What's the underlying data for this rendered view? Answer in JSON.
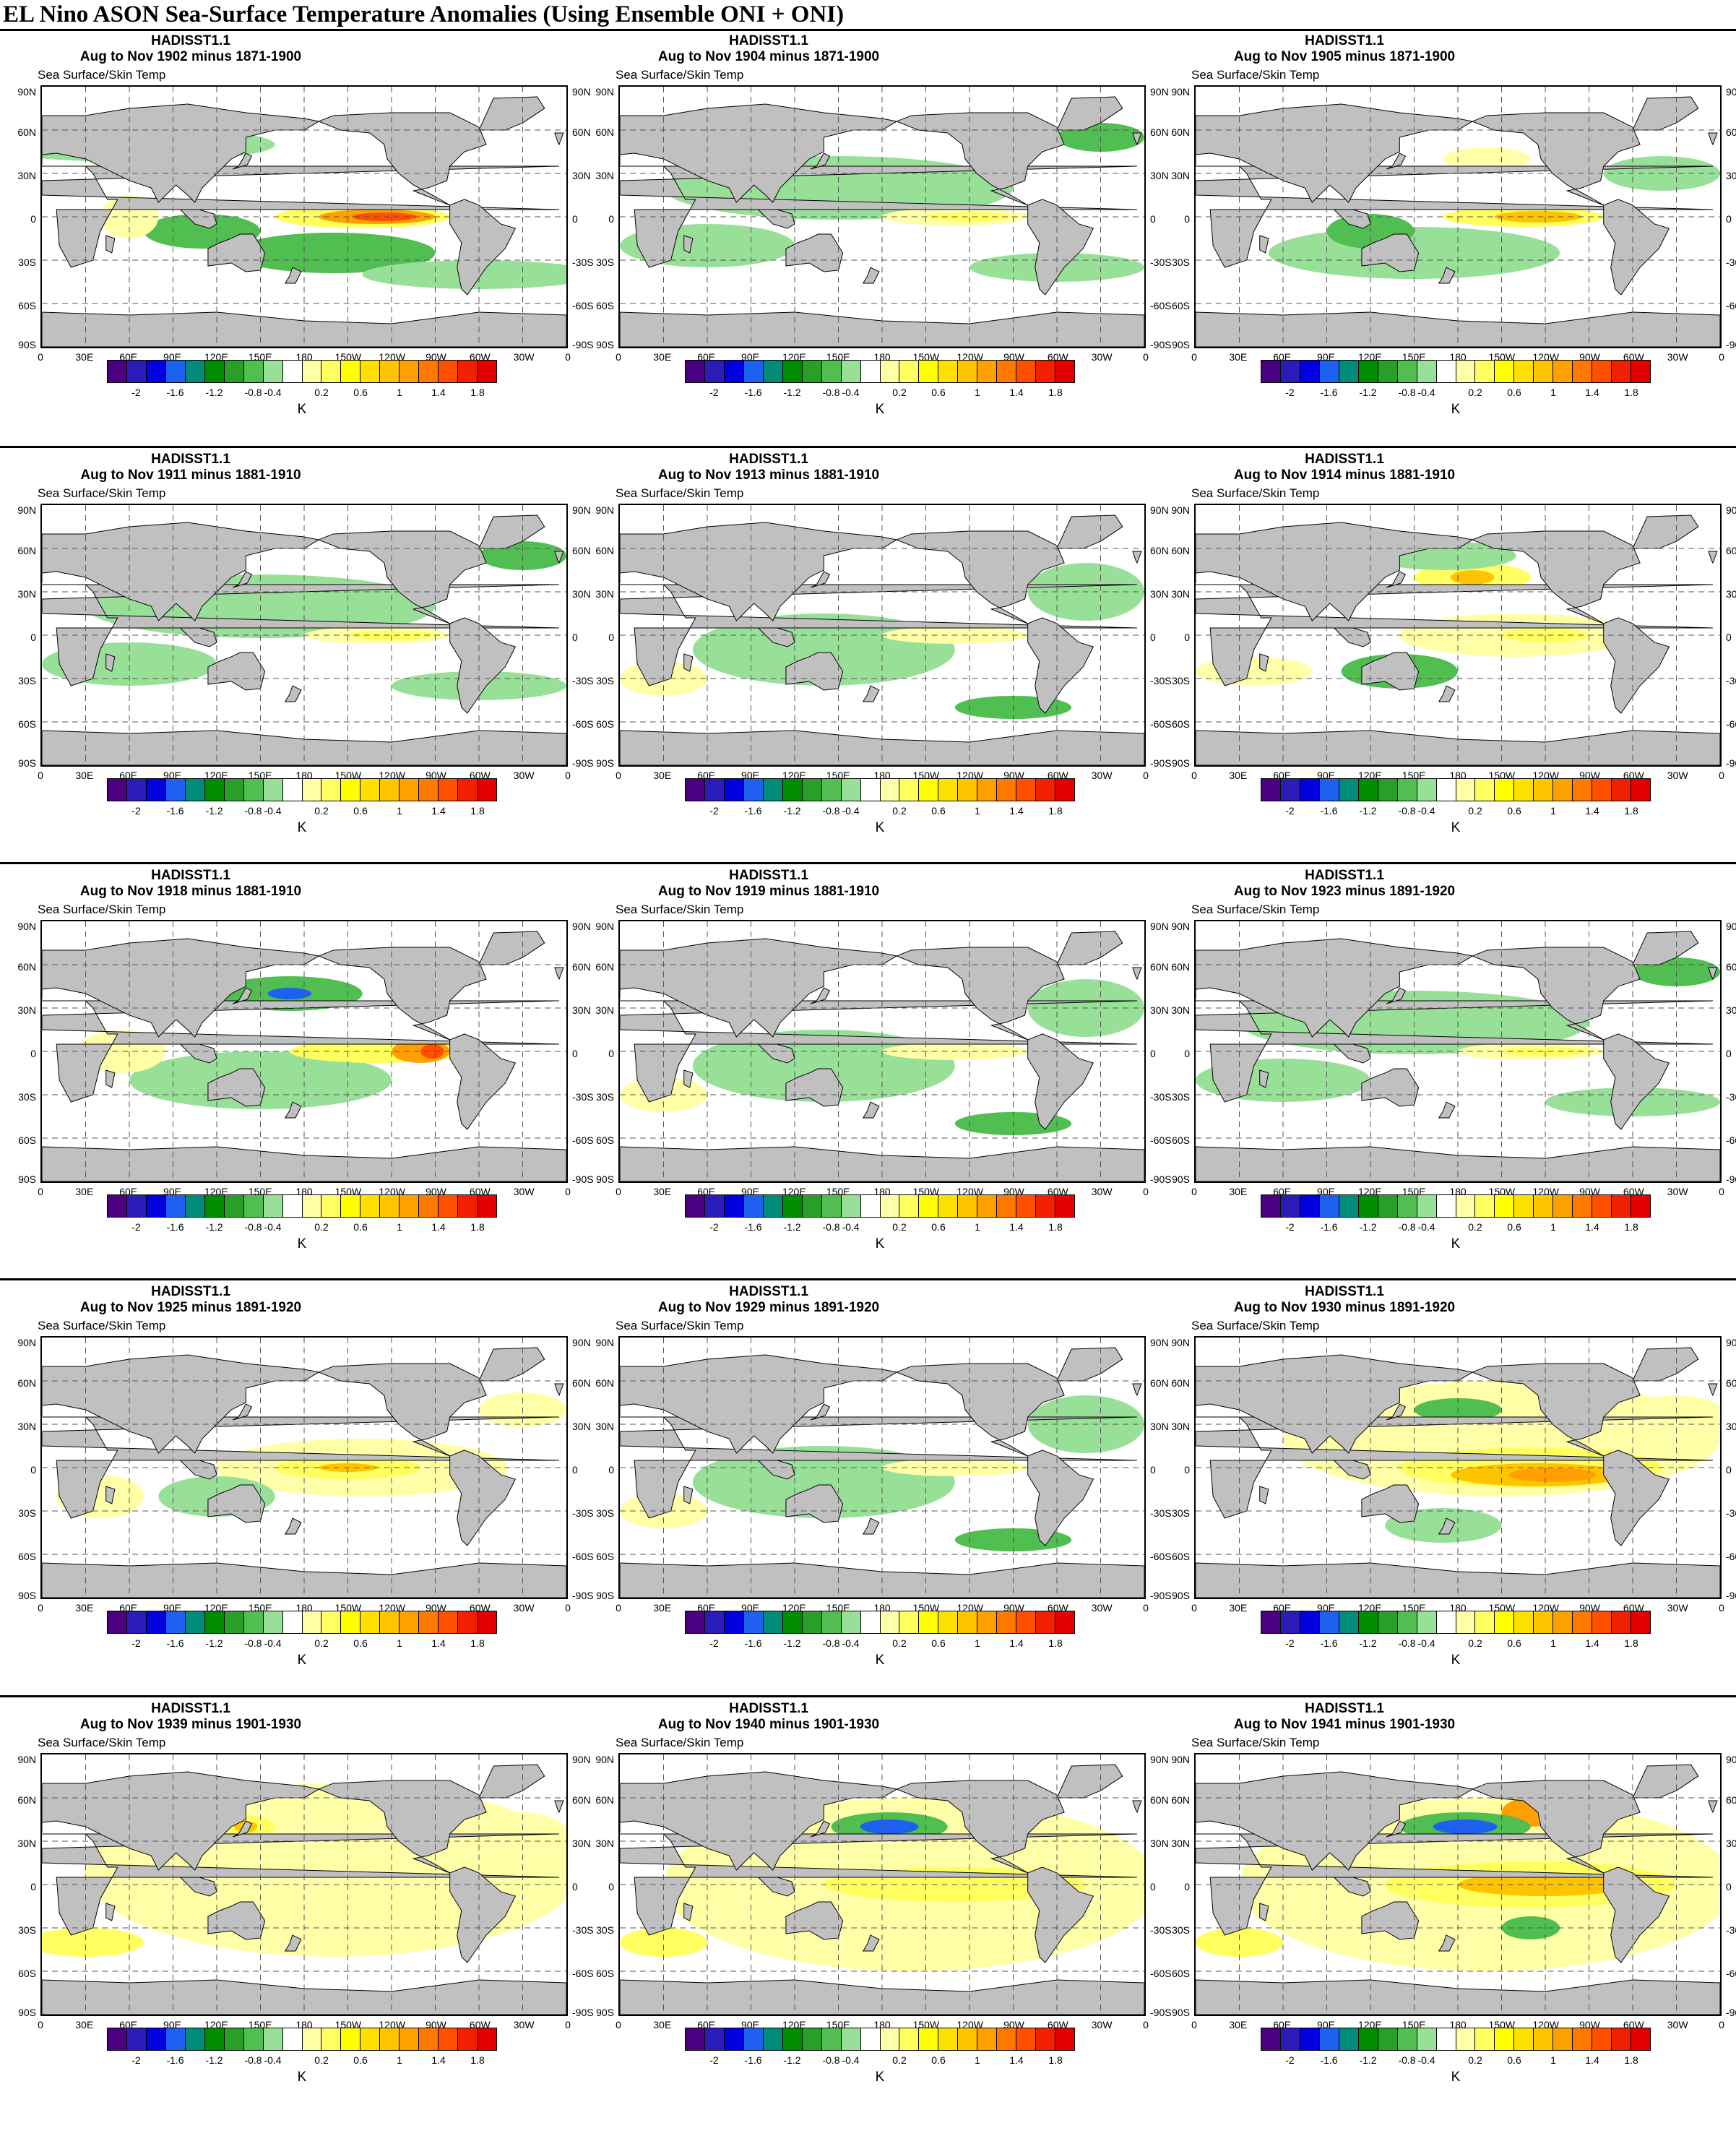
{
  "page": {
    "title": "EL Nino ASON Sea-Surface Temperature Anomalies (Using Ensemble ONI + ONI)"
  },
  "common": {
    "dataset": "HADISST1.1",
    "variable_label": "Sea Surface/Skin Temp",
    "units": "K",
    "lat_labels_left": [
      "90N",
      "60N",
      "30N",
      "0",
      "30S",
      "60S",
      "90S"
    ],
    "lat_labels_right": [
      "90N",
      "60N",
      "30N",
      "0",
      "-30S",
      "-60S",
      "-90S"
    ],
    "lon_labels": [
      "0",
      "30E",
      "60E",
      "90E",
      "120E",
      "150E",
      "180",
      "150W",
      "120W",
      "90W",
      "60W",
      "30W",
      "0"
    ],
    "colorbar": {
      "labels": [
        "-2",
        "-1.6",
        "-1.2",
        "-0.8",
        "-0.4",
        "0.2",
        "0.6",
        "1",
        "1.4",
        "1.8"
      ],
      "colors": [
        "#4b0082",
        "#2a1cb8",
        "#0000e0",
        "#1e60f0",
        "#008c78",
        "#008c00",
        "#28a028",
        "#50be50",
        "#98e098",
        "#ffffff",
        "#ffffa8",
        "#ffff60",
        "#ffff00",
        "#ffe000",
        "#ffc400",
        "#ffa000",
        "#ff7800",
        "#ff5000",
        "#f02000",
        "#e00000"
      ]
    },
    "colors": {
      "land": "#c0c0c0",
      "ocean_neutral": "#ffffff"
    }
  },
  "panels": [
    {
      "period": "Aug to Nov 1902 minus 1871-1900",
      "pattern": "nino-strong"
    },
    {
      "period": "Aug to Nov 1904 minus 1871-1900",
      "pattern": "nino-weak-cool"
    },
    {
      "period": "Aug to Nov 1905 minus 1871-1900",
      "pattern": "nino-moderate"
    },
    {
      "period": "Aug to Nov 1911 minus 1881-1910",
      "pattern": "nino-weak-cool"
    },
    {
      "period": "Aug to Nov 1913 minus 1881-1910",
      "pattern": "neutral-cool"
    },
    {
      "period": "Aug to Nov 1914 minus 1881-1910",
      "pattern": "nino-warm-pacific"
    },
    {
      "period": "Aug to Nov 1918 minus 1881-1910",
      "pattern": "nino-coastal"
    },
    {
      "period": "Aug to Nov 1919 minus 1881-1910",
      "pattern": "neutral-cool"
    },
    {
      "period": "Aug to Nov 1923 minus 1891-1920",
      "pattern": "nino-weak-cool"
    },
    {
      "period": "Aug to Nov 1925 minus 1891-1920",
      "pattern": "nino-weak"
    },
    {
      "period": "Aug to Nov 1929 minus 1891-1920",
      "pattern": "neutral-cool"
    },
    {
      "period": "Aug to Nov 1930 minus 1891-1920",
      "pattern": "nino-strong-warm"
    },
    {
      "period": "Aug to Nov 1939 minus 1901-1930",
      "pattern": "warm-global"
    },
    {
      "period": "Aug to Nov 1940 minus 1901-1930",
      "pattern": "warm-npac-cold"
    },
    {
      "period": "Aug to Nov 1941 minus 1901-1930",
      "pattern": "warm-npac-cold-strong"
    }
  ]
}
